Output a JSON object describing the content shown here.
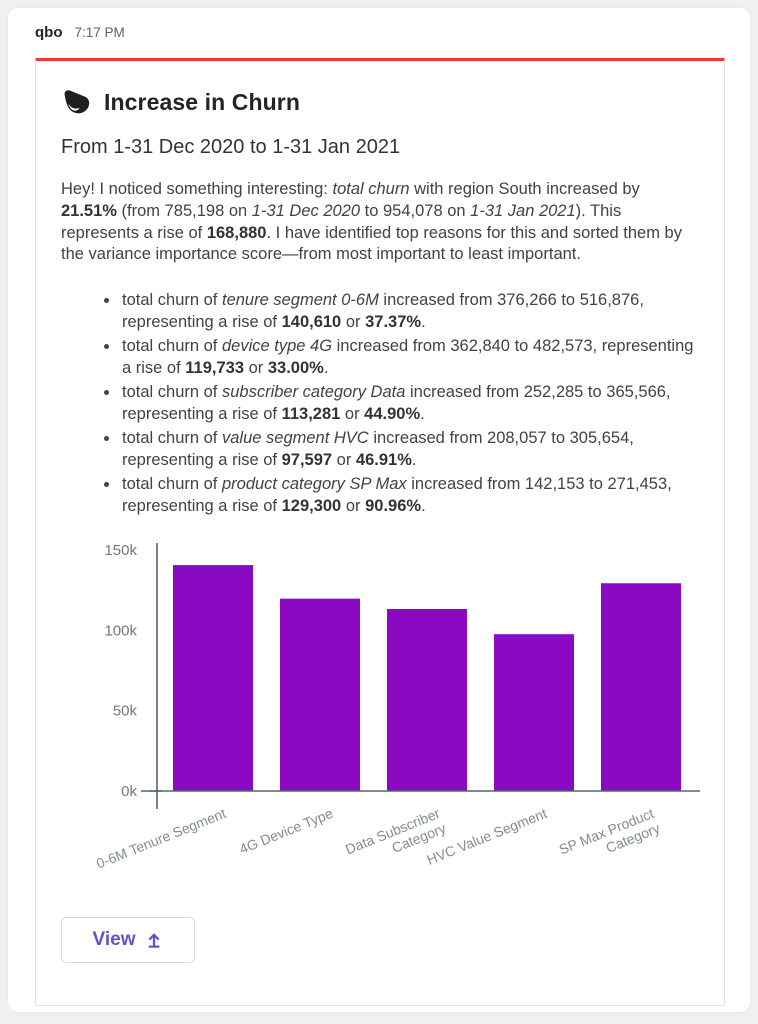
{
  "message": {
    "sender": "qbo",
    "timestamp": "7:17 PM"
  },
  "card": {
    "accent_color": "#f0382f",
    "title": "Increase in Churn",
    "subtitle": "From 1-31 Dec 2020 to 1-31 Jan 2021",
    "logo_icon": "qbo-logo",
    "intro_runs": [
      {
        "t": "Hey! I noticed something interesting: "
      },
      {
        "t": "total churn",
        "i": true
      },
      {
        "t": " with region South increased by "
      },
      {
        "t": "21.51%",
        "b": true
      },
      {
        "t": " (from 785,198 on "
      },
      {
        "t": "1-31 Dec 2020",
        "i": true
      },
      {
        "t": " to 954,078 on "
      },
      {
        "t": "1-31 Jan 2021",
        "i": true
      },
      {
        "t": "). This represents a rise of "
      },
      {
        "t": "168,880",
        "b": true
      },
      {
        "t": ". I have identified top reasons for this and sorted them by the variance importance score—from most important to least important."
      }
    ],
    "reasons": [
      {
        "runs": [
          {
            "t": "total churn of "
          },
          {
            "t": "tenure segment 0-6M",
            "i": true
          },
          {
            "t": " increased from 376,266 to 516,876, representing a rise of "
          },
          {
            "t": "140,610",
            "b": true
          },
          {
            "t": " or "
          },
          {
            "t": "37.37%",
            "b": true
          },
          {
            "t": "."
          }
        ]
      },
      {
        "runs": [
          {
            "t": "total churn of "
          },
          {
            "t": "device type 4G",
            "i": true
          },
          {
            "t": " increased from 362,840 to 482,573, representing a rise of "
          },
          {
            "t": "119,733",
            "b": true
          },
          {
            "t": " or "
          },
          {
            "t": "33.00%",
            "b": true
          },
          {
            "t": "."
          }
        ]
      },
      {
        "runs": [
          {
            "t": "total churn of "
          },
          {
            "t": "subscriber category Data",
            "i": true
          },
          {
            "t": " increased from 252,285 to 365,566, representing a rise of "
          },
          {
            "t": "113,281",
            "b": true
          },
          {
            "t": " or "
          },
          {
            "t": "44.90%",
            "b": true
          },
          {
            "t": "."
          }
        ]
      },
      {
        "runs": [
          {
            "t": "total churn of "
          },
          {
            "t": "value segment HVC",
            "i": true
          },
          {
            "t": " increased from 208,057 to 305,654, representing a rise of "
          },
          {
            "t": "97,597",
            "b": true
          },
          {
            "t": " or "
          },
          {
            "t": "46.91%",
            "b": true
          },
          {
            "t": "."
          }
        ]
      },
      {
        "runs": [
          {
            "t": "total churn of "
          },
          {
            "t": "product category SP Max",
            "i": true
          },
          {
            "t": " increased from 142,153 to 271,453, representing a rise of "
          },
          {
            "t": "129,300",
            "b": true
          },
          {
            "t": " or "
          },
          {
            "t": "90.96%",
            "b": true
          },
          {
            "t": "."
          }
        ]
      }
    ],
    "view_button": {
      "label": "View",
      "icon": "arrow-up-from-bar",
      "color": "#6750c8"
    }
  },
  "chart_data": {
    "type": "bar",
    "title": "",
    "xlabel": "",
    "ylabel": "",
    "categories": [
      "0-6M Tenure Segment",
      "4G Device Type",
      "Data Subscriber\nCategory",
      "HVC Value Segment",
      "SP Max Product\nCategory"
    ],
    "values": [
      140610,
      119733,
      113281,
      97597,
      129300
    ],
    "ylim": [
      0,
      150000
    ],
    "yticks": [
      {
        "value": 150000,
        "label": "150k"
      },
      {
        "value": 100000,
        "label": "100k"
      },
      {
        "value": 50000,
        "label": "50k"
      },
      {
        "value": 0,
        "label": "0k"
      }
    ],
    "grid": false,
    "legend": false,
    "bar_color": "#8a0ac4",
    "axis_color": "#4c6b6b",
    "ytick_label_color": "#6e7a7a",
    "xtick_label_color": "#828c94"
  }
}
